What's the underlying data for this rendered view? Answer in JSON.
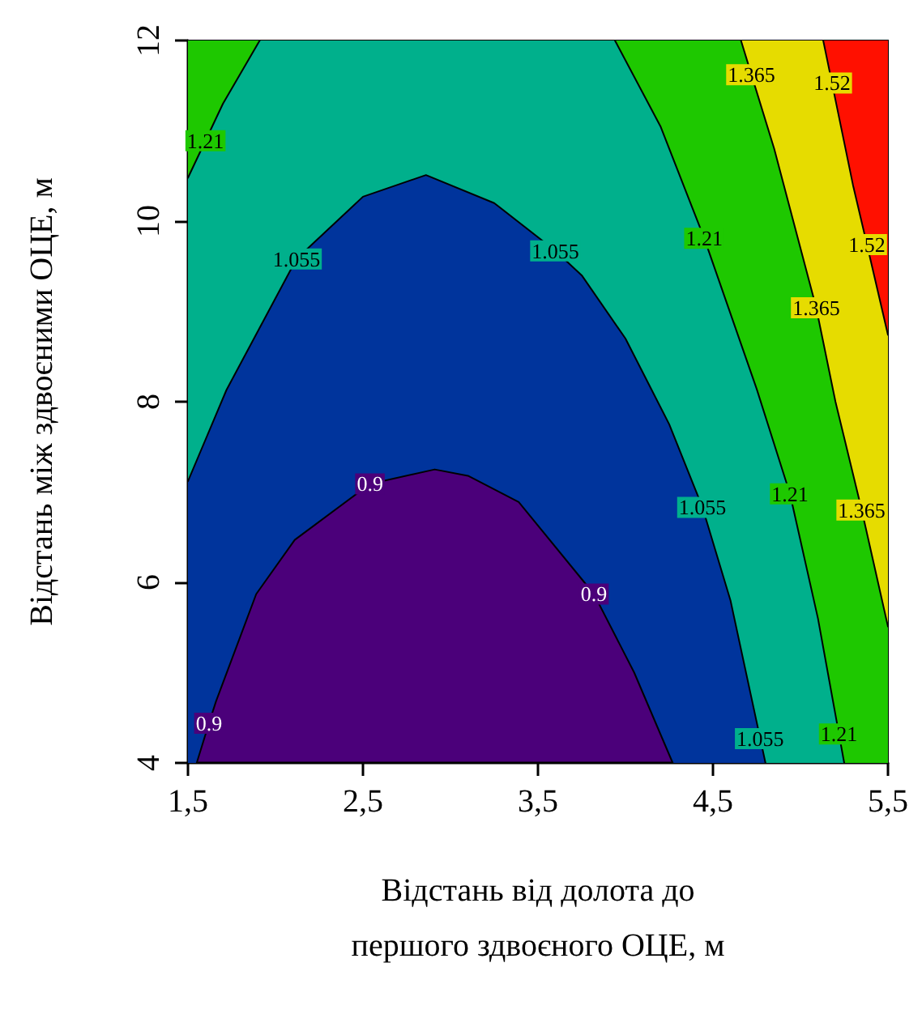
{
  "chart_data": {
    "type": "line",
    "xlabel": "Відстань від долота до\nпершого здвоєного ОЦЕ, м",
    "ylabel": "Відстань між здвоєними ОЦЕ, м",
    "xlim": [
      1.5,
      5.5
    ],
    "ylim": [
      4,
      12
    ],
    "xticks": [
      {
        "value": 1.5,
        "label": "1,5"
      },
      {
        "value": 2.5,
        "label": "2,5"
      },
      {
        "value": 3.5,
        "label": "3,5"
      },
      {
        "value": 4.5,
        "label": "4,5"
      },
      {
        "value": 5.5,
        "label": "5,5"
      }
    ],
    "yticks": [
      4,
      6,
      8,
      10,
      12
    ],
    "colors": [
      "#4b007a",
      "#00349c",
      "#00b08c",
      "#1ec800",
      "#e6dc00",
      "#ff1000"
    ],
    "grid": false,
    "legend": false,
    "marker": "none",
    "line_style": "solid",
    "series": [
      {
        "name": "0.9",
        "color": "#000000",
        "x": [
          1.55,
          1.62,
          1.66,
          1.89,
          2.11,
          2.54,
          2.91,
          3.1,
          3.39,
          3.82,
          4.05,
          4.27
        ],
        "values": [
          4.0,
          4.44,
          4.68,
          5.87,
          6.47,
          7.09,
          7.25,
          7.18,
          6.89,
          5.87,
          5.0,
          4.0
        ]
      },
      {
        "name": "1.055",
        "color": "#000000",
        "x": [
          1.5,
          1.72,
          2.12,
          2.5,
          2.86,
          3.25,
          3.6,
          3.75,
          4.0,
          4.25,
          4.44,
          4.6,
          4.77,
          4.8
        ],
        "values": [
          7.12,
          8.13,
          9.58,
          10.27,
          10.51,
          10.2,
          9.67,
          9.4,
          8.7,
          7.75,
          6.83,
          5.8,
          4.27,
          4.0
        ]
      },
      {
        "name": "1.21",
        "color": "#000000",
        "x": [
          3.94,
          4.2,
          4.45,
          4.75,
          4.94,
          5.1,
          5.22,
          5.25
        ],
        "values": [
          12,
          11.05,
          9.81,
          8.14,
          6.98,
          5.6,
          4.32,
          4.0
        ]
      },
      {
        "name": "1.21",
        "color": "#000000",
        "x": [
          1.5,
          1.6,
          1.7,
          1.91
        ],
        "values": [
          10.48,
          10.89,
          11.3,
          12
        ]
      },
      {
        "name": "1.365",
        "color": "#000000",
        "x": [
          4.66,
          4.72,
          4.85,
          5.09,
          5.2,
          5.35,
          5.5
        ],
        "values": [
          12,
          11.62,
          10.8,
          9.04,
          8.0,
          6.8,
          5.51
        ]
      },
      {
        "name": "1.52",
        "color": "#000000",
        "x": [
          5.13,
          5.18,
          5.3,
          5.38,
          5.5
        ],
        "values": [
          12,
          11.53,
          10.4,
          9.74,
          8.74
        ]
      }
    ]
  }
}
